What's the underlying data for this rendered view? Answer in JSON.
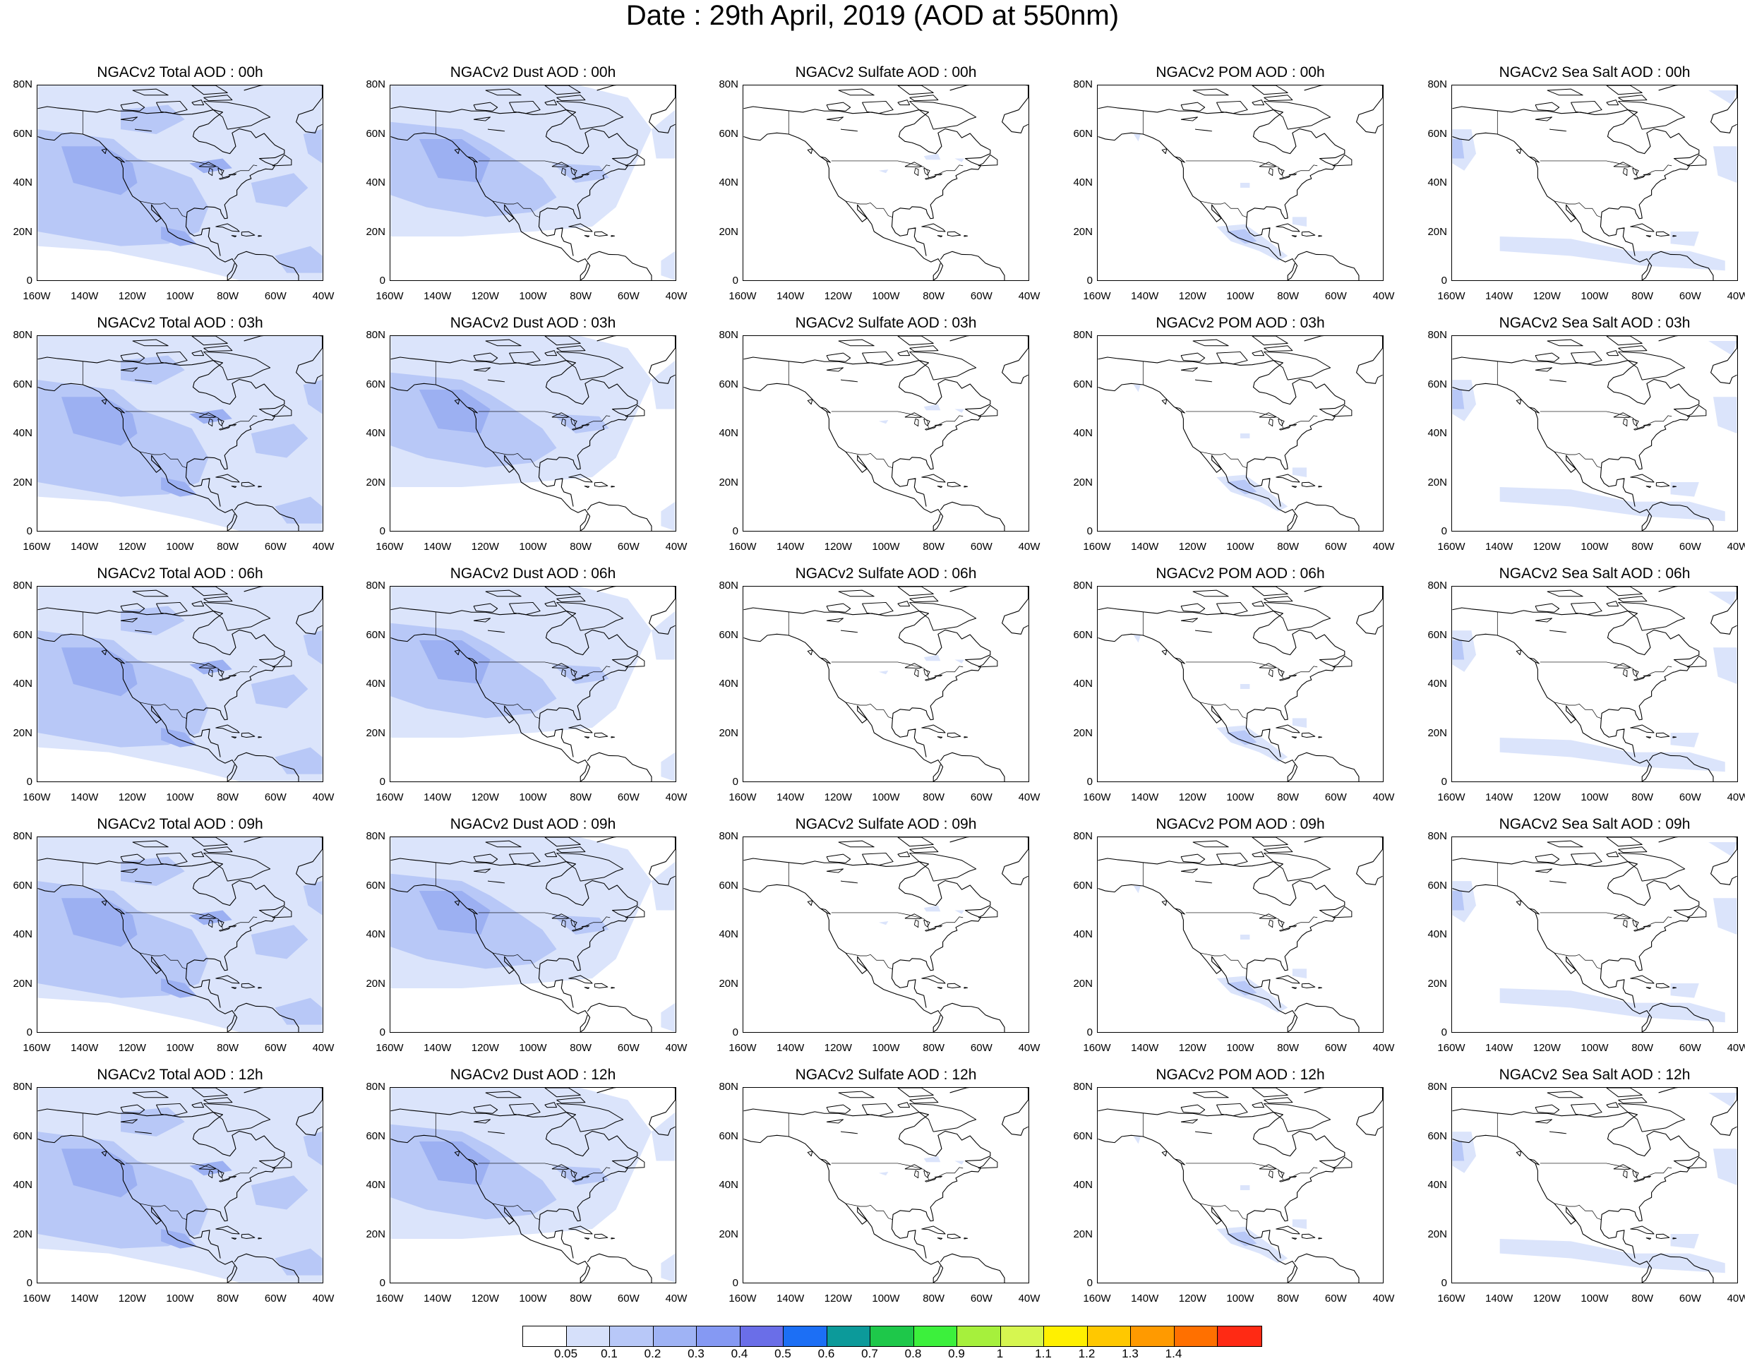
{
  "title": "Date : 29th April, 2019 (AOD at 550nm)",
  "x_axis_labels": [
    "160W",
    "140W",
    "120W",
    "100W",
    "80W",
    "60W",
    "40W"
  ],
  "y_axis_labels": [
    "80N",
    "60N",
    "40N",
    "20N",
    "0"
  ],
  "lon_range": [
    -160,
    -40
  ],
  "lat_range": [
    0,
    80
  ],
  "colorbar": {
    "labels": [
      "0.05",
      "0.1",
      "0.2",
      "0.3",
      "0.4",
      "0.5",
      "0.6",
      "0.7",
      "0.8",
      "0.9",
      "1",
      "1.1",
      "1.2",
      "1.3",
      "1.4"
    ],
    "colors": [
      "#ffffff",
      "#d6e0fa",
      "#b8c8f8",
      "#9fb3f5",
      "#8599f3",
      "#6a6ee8",
      "#1c6ff5",
      "#0c9a9a",
      "#1ec84a",
      "#3cf03c",
      "#a6f03c",
      "#d6f650",
      "#fff000",
      "#ffc800",
      "#ff9a00",
      "#ff7000",
      "#ff2a14"
    ]
  },
  "palette": {
    "level1": "#dbe4fb",
    "level2": "#b8c8f7",
    "level3": "#9cb0f2",
    "level4": "#8a9cf0"
  },
  "panels": [
    {
      "title": "NGACv2 Total AOD : 00h",
      "kind": "total"
    },
    {
      "title": "NGACv2 Dust AOD : 00h",
      "kind": "dust"
    },
    {
      "title": "NGACv2 Sulfate AOD : 00h",
      "kind": "sulfate"
    },
    {
      "title": "NGACv2 POM AOD : 00h",
      "kind": "pom"
    },
    {
      "title": "NGACv2 Sea Salt AOD : 00h",
      "kind": "seasalt"
    },
    {
      "title": "NGACv2 Total AOD : 03h",
      "kind": "total"
    },
    {
      "title": "NGACv2 Dust AOD : 03h",
      "kind": "dust"
    },
    {
      "title": "NGACv2 Sulfate AOD : 03h",
      "kind": "sulfate"
    },
    {
      "title": "NGACv2 POM AOD : 03h",
      "kind": "pom"
    },
    {
      "title": "NGACv2 Sea Salt AOD : 03h",
      "kind": "seasalt"
    },
    {
      "title": "NGACv2 Total AOD : 06h",
      "kind": "total"
    },
    {
      "title": "NGACv2 Dust AOD : 06h",
      "kind": "dust"
    },
    {
      "title": "NGACv2 Sulfate AOD : 06h",
      "kind": "sulfate"
    },
    {
      "title": "NGACv2 POM AOD : 06h",
      "kind": "pom"
    },
    {
      "title": "NGACv2 Sea Salt AOD : 06h",
      "kind": "seasalt"
    },
    {
      "title": "NGACv2 Total AOD : 09h",
      "kind": "total"
    },
    {
      "title": "NGACv2 Dust AOD : 09h",
      "kind": "dust"
    },
    {
      "title": "NGACv2 Sulfate AOD : 09h",
      "kind": "sulfate"
    },
    {
      "title": "NGACv2 POM AOD : 09h",
      "kind": "pom"
    },
    {
      "title": "NGACv2 Sea Salt  AOD : 09h",
      "kind": "seasalt"
    },
    {
      "title": "NGACv2 Total AOD  : 12h",
      "kind": "total"
    },
    {
      "title": "NGACv2 Dust AOD : 12h",
      "kind": "dust"
    },
    {
      "title": "NGACv2 Sulfate AOD : 12h",
      "kind": "sulfate"
    },
    {
      "title": "NGACv2 POM  AOD : 12h",
      "kind": "pom"
    },
    {
      "title": "NGACv2 Sea Salt  AOD : 12h",
      "kind": "seasalt"
    }
  ]
}
